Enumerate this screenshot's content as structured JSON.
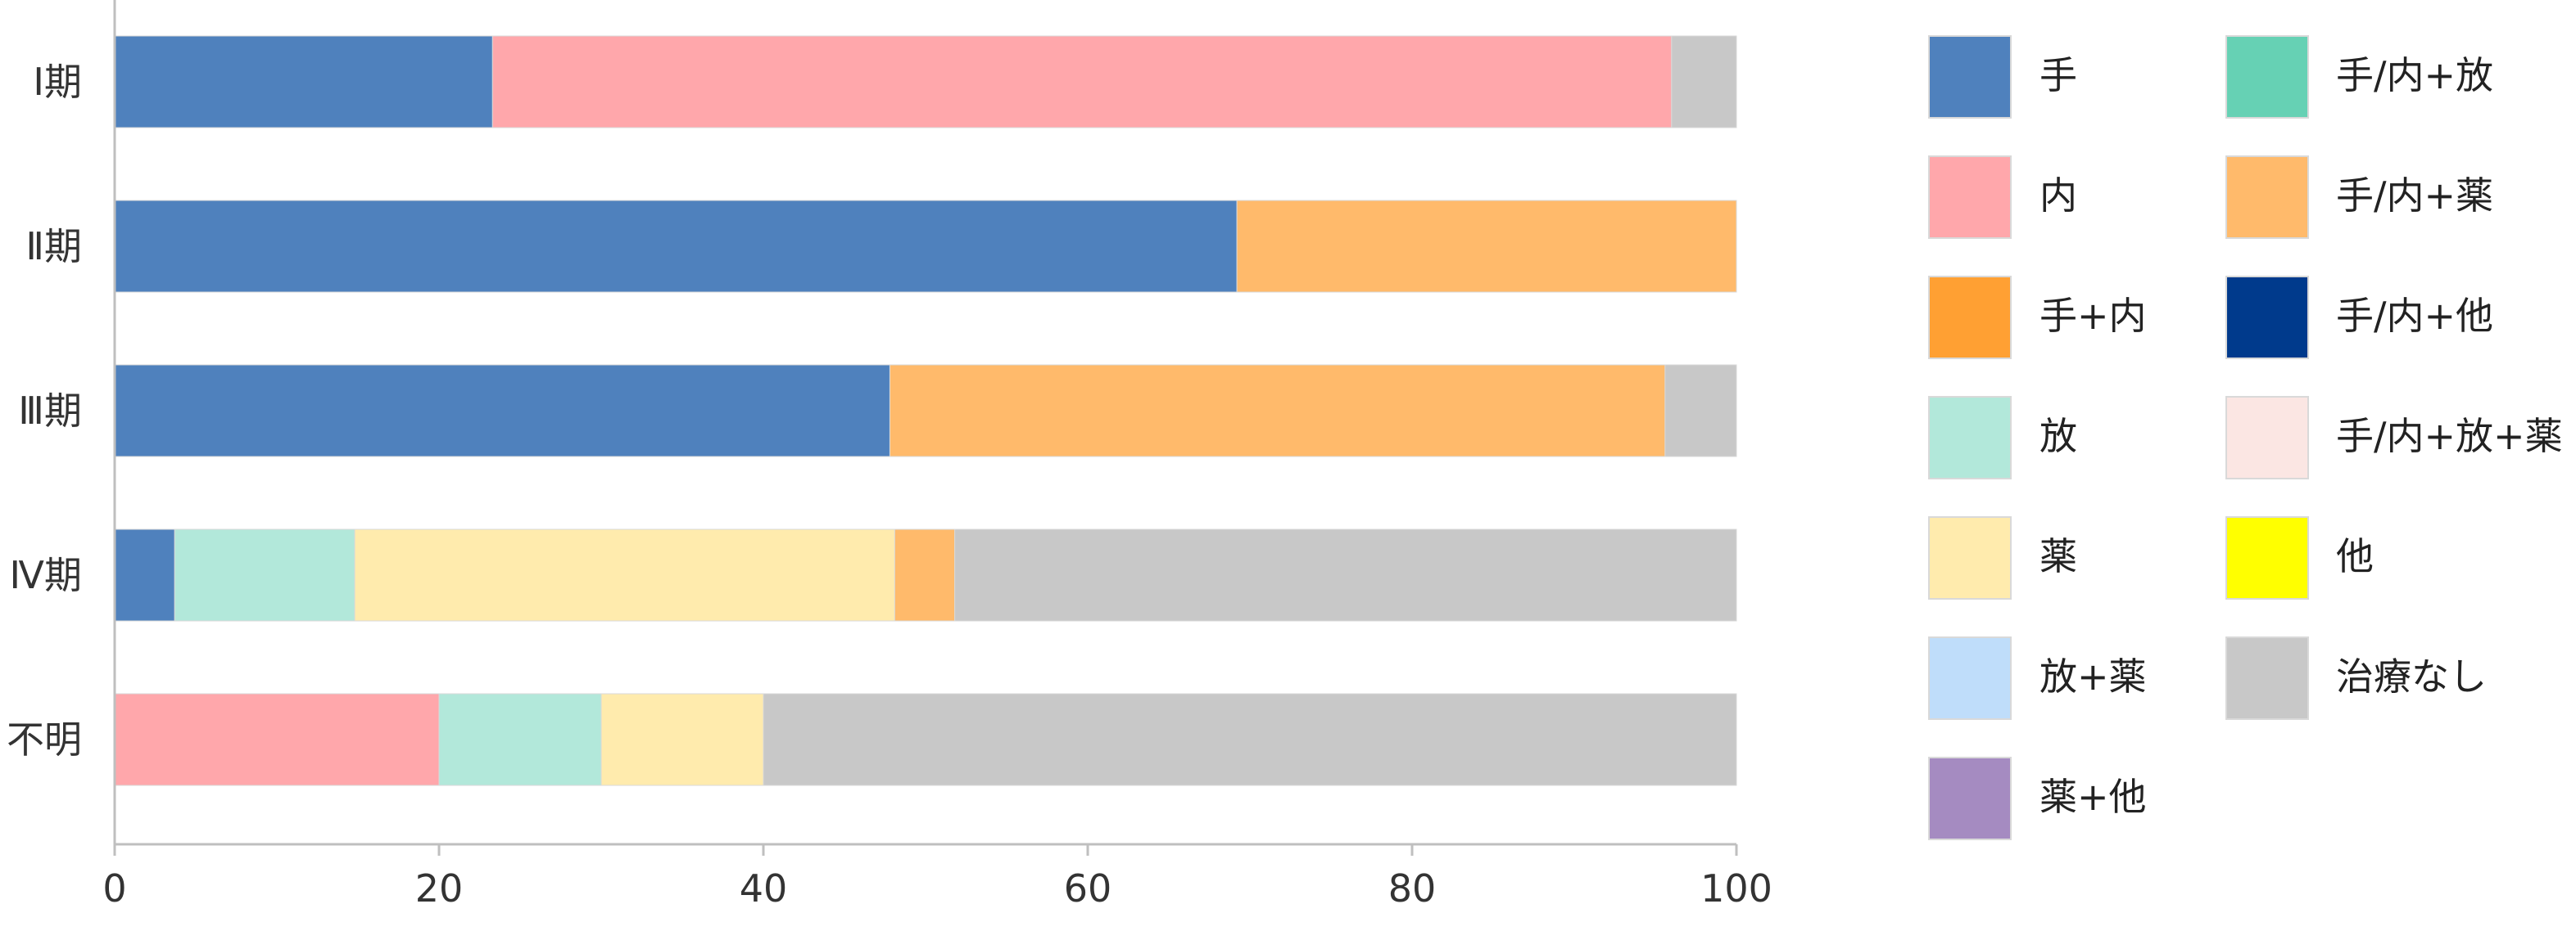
{
  "chart_data": {
    "type": "bar",
    "orientation": "horizontal",
    "stacked": true,
    "categories": [
      "Ⅰ期",
      "Ⅱ期",
      "Ⅲ期",
      "Ⅳ期",
      "不明"
    ],
    "xlim": [
      0,
      100
    ],
    "xticks": [
      "0",
      "20",
      "40",
      "60",
      "80",
      "100"
    ],
    "grid": false,
    "legend_position": "right",
    "series": [
      {
        "name": "手",
        "color": "#4F81BD",
        "values": [
          23.3,
          69.2,
          47.8,
          3.7,
          0
        ]
      },
      {
        "name": "内",
        "color": "#FFA7AB",
        "values": [
          72.7,
          0,
          0,
          0,
          20
        ]
      },
      {
        "name": "手+内",
        "color": "#FFA033",
        "values": [
          0,
          0,
          0,
          0,
          0
        ]
      },
      {
        "name": "放",
        "color": "#B2E8DA",
        "values": [
          0,
          0,
          0,
          11.1,
          10
        ]
      },
      {
        "name": "薬",
        "color": "#FFEBAD",
        "values": [
          0,
          0,
          0,
          33.3,
          10
        ]
      },
      {
        "name": "放+薬",
        "color": "#BFDDFA",
        "values": [
          0,
          0,
          0,
          0,
          0
        ]
      },
      {
        "name": "薬+他",
        "color": "#A58BC1",
        "values": [
          0,
          0,
          0,
          0,
          0
        ]
      },
      {
        "name": "手/内+放",
        "color": "#66D1B4",
        "values": [
          0,
          0,
          0,
          0,
          0
        ]
      },
      {
        "name": "手/内+薬",
        "color": "#FFBA6B",
        "values": [
          0,
          30.8,
          47.8,
          3.7,
          0
        ]
      },
      {
        "name": "手/内+他",
        "color": "#003A8C",
        "values": [
          0,
          0,
          0,
          0,
          0
        ]
      },
      {
        "name": "手/内+放+薬",
        "color": "#FBE6E3",
        "values": [
          0,
          0,
          0,
          0,
          0
        ]
      },
      {
        "name": "他",
        "color": "#FFFF00",
        "values": [
          0,
          0,
          0,
          0,
          0
        ]
      },
      {
        "name": "治療なし",
        "color": "#C8C8C8",
        "values": [
          4.0,
          0,
          4.4,
          48.2,
          60
        ]
      }
    ]
  }
}
